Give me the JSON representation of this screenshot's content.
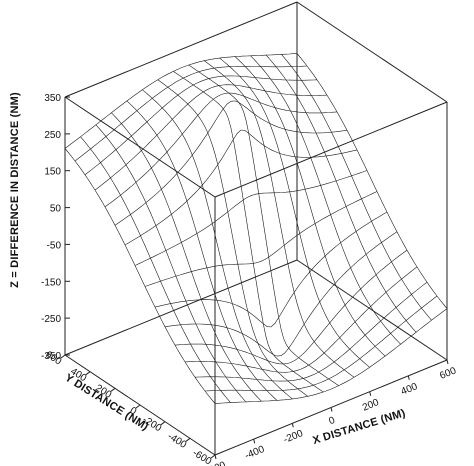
{
  "chart_data": {
    "type": "surface",
    "title": "",
    "xlabel": "X DISTANCE (NM)",
    "ylabel": "Y DISTANCE (NM)",
    "zlabel": "Z = DIFFERENCE IN DISTANCE (NM)",
    "xlim": [
      -600,
      600
    ],
    "ylim": [
      -600,
      600
    ],
    "zlim": [
      -350,
      350
    ],
    "x_ticks": [
      "-600",
      "-400",
      "-200",
      "0",
      "200",
      "400",
      "600"
    ],
    "y_ticks": [
      "-600",
      "-400",
      "-200",
      "0",
      "200",
      "400",
      "600"
    ],
    "z_ticks": [
      "-350",
      "-250",
      "-150",
      "-50",
      "50",
      "150",
      "250",
      "350"
    ],
    "x_tick_values": [
      -600,
      -400,
      -200,
      0,
      200,
      400,
      600
    ],
    "y_tick_values": [
      -600,
      -400,
      -200,
      0,
      200,
      400,
      600
    ],
    "z_tick_values": [
      -350,
      -250,
      -150,
      -50,
      50,
      150,
      250,
      350
    ],
    "grid_x": [
      -600,
      -520,
      -440,
      -360,
      -280,
      -200,
      -120,
      -40,
      40,
      120,
      200,
      280,
      360,
      440,
      520,
      600
    ],
    "grid_y": [
      -600,
      -520,
      -440,
      -360,
      -280,
      -200,
      -120,
      -40,
      40,
      120,
      200,
      280,
      360,
      440,
      520,
      600
    ],
    "foci": {
      "x1": 0,
      "y1": -150,
      "x2": 0,
      "y2": 150
    },
    "grid": false
  }
}
